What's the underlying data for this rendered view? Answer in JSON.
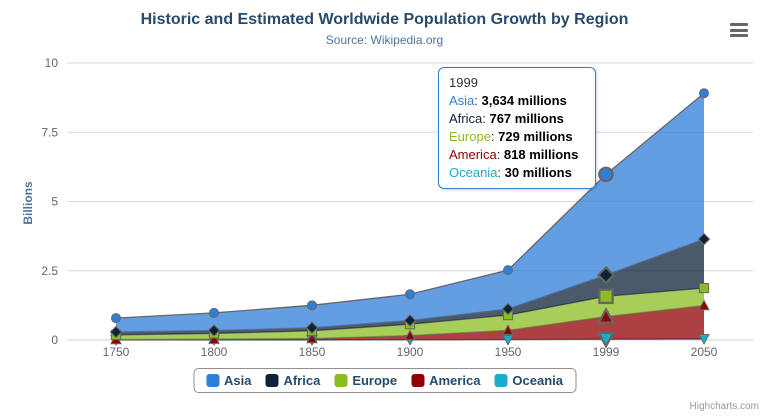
{
  "header": {
    "title": "Historic and Estimated Worldwide Population Growth by Region",
    "subtitle": "Source: Wikipedia.org"
  },
  "chart_data": {
    "type": "area",
    "stacking": "normal",
    "title": "Historic and Estimated Worldwide Population Growth by Region",
    "subtitle": "Source: Wikipedia.org",
    "categories": [
      "1750",
      "1800",
      "1850",
      "1900",
      "1950",
      "1999",
      "2050"
    ],
    "series": [
      {
        "name": "Asia",
        "color": "#2f7ed8",
        "marker": "circle",
        "values": [
          502,
          635,
          809,
          947,
          1402,
          3634,
          5268
        ]
      },
      {
        "name": "Africa",
        "color": "#0d233a",
        "marker": "diamond",
        "values": [
          106,
          107,
          111,
          133,
          221,
          767,
          1766
        ]
      },
      {
        "name": "Europe",
        "color": "#8bbc21",
        "marker": "square",
        "values": [
          163,
          203,
          276,
          408,
          547,
          729,
          628
        ]
      },
      {
        "name": "America",
        "color": "#910000",
        "marker": "triangle",
        "values": [
          18,
          31,
          54,
          156,
          339,
          818,
          1201
        ]
      },
      {
        "name": "Oceania",
        "color": "#1aadce",
        "marker": "triangle-down",
        "values": [
          2,
          2,
          2,
          6,
          13,
          30,
          46
        ]
      }
    ],
    "units": "millions",
    "xlabel": "",
    "ylabel": "Billions",
    "ylim": [
      0,
      10
    ],
    "yticks": [
      0,
      2.5,
      5,
      7.5,
      10
    ],
    "ytick_labels": [
      "0",
      "2.5",
      "5",
      "7.5",
      "10"
    ],
    "grid": true,
    "legend_position": "bottom",
    "hover": {
      "category": "1999",
      "index": 5
    },
    "style": {
      "line_color": "#666666",
      "fill_opacity": 0.75,
      "gridline_color": "#d8d8d8",
      "axis_line_color": "#c0d0e0",
      "axis_label_color": "#666666",
      "tooltip_border_color": "#2f7ed8"
    }
  },
  "tooltip": {
    "header": "1999",
    "rows": [
      {
        "label": "Asia",
        "color": "#2f7ed8",
        "value": "3,634 millions"
      },
      {
        "label": "Africa",
        "color": "#0d233a",
        "value": "767 millions"
      },
      {
        "label": "Europe",
        "color": "#8bbc21",
        "value": "729 millions"
      },
      {
        "label": "America",
        "color": "#910000",
        "value": "818 millions"
      },
      {
        "label": "Oceania",
        "color": "#1aadce",
        "value": "30 millions"
      }
    ]
  },
  "legend": {
    "items": [
      "Asia",
      "Africa",
      "Europe",
      "America",
      "Oceania"
    ]
  },
  "credits": "Highcharts.com"
}
